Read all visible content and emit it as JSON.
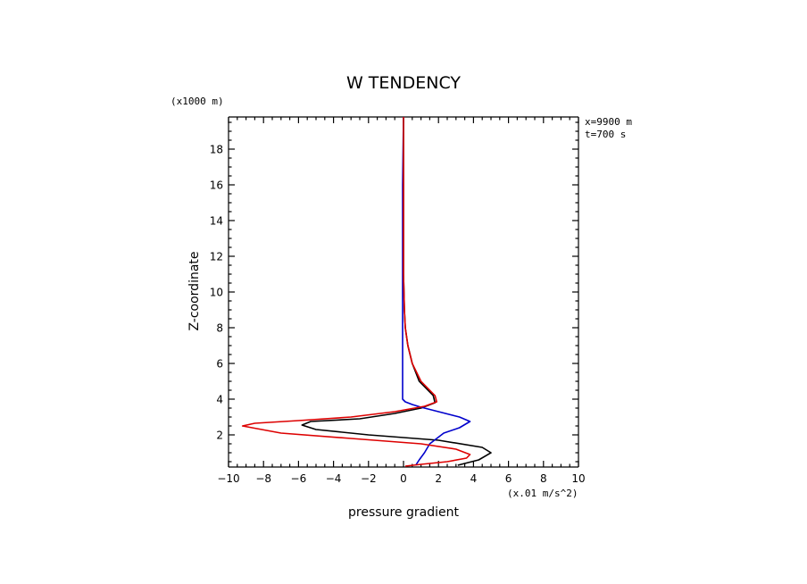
{
  "chart_data": {
    "type": "line",
    "title": "W TENDENCY",
    "xlabel": "pressure gradient",
    "ylabel": "Z-coordinate",
    "x_units": "(x.01 m/s^2)",
    "y_units": "(x1000 m)",
    "annotations": [
      "x=9900 m",
      "t=700 s"
    ],
    "xlim": [
      -10,
      10
    ],
    "ylim": [
      0.2,
      19.8
    ],
    "x_ticks": [
      -10,
      -8,
      -6,
      -4,
      -2,
      0,
      2,
      4,
      6,
      8,
      10
    ],
    "y_ticks": [
      2,
      4,
      6,
      8,
      10,
      12,
      14,
      16,
      18
    ],
    "grid": false,
    "series": [
      {
        "color": "#000000",
        "points": [
          [
            3.1,
            0.3
          ],
          [
            4.3,
            0.6
          ],
          [
            5.0,
            1.0
          ],
          [
            4.5,
            1.3
          ],
          [
            2.0,
            1.7
          ],
          [
            -2.0,
            2.0
          ],
          [
            -5.0,
            2.3
          ],
          [
            -5.8,
            2.55
          ],
          [
            -5.3,
            2.75
          ],
          [
            -2.5,
            2.9
          ],
          [
            -0.5,
            3.2
          ],
          [
            1.0,
            3.5
          ],
          [
            1.8,
            3.8
          ],
          [
            1.7,
            4.2
          ],
          [
            0.9,
            5.0
          ],
          [
            0.5,
            6.0
          ],
          [
            0.25,
            7.0
          ],
          [
            0.1,
            8.0
          ],
          [
            0.05,
            9.0
          ],
          [
            0.0,
            11.0
          ],
          [
            0.0,
            13.0
          ],
          [
            0.0,
            16.0
          ],
          [
            0.0,
            19.8
          ]
        ]
      },
      {
        "color": "#0000cc",
        "points": [
          [
            0.7,
            0.3
          ],
          [
            0.9,
            0.6
          ],
          [
            1.2,
            1.0
          ],
          [
            1.5,
            1.5
          ],
          [
            2.3,
            2.1
          ],
          [
            3.2,
            2.4
          ],
          [
            3.8,
            2.75
          ],
          [
            3.2,
            3.0
          ],
          [
            2.0,
            3.3
          ],
          [
            1.0,
            3.55
          ],
          [
            0.5,
            3.7
          ],
          [
            0.1,
            3.85
          ],
          [
            -0.05,
            4.0
          ],
          [
            -0.05,
            5.0
          ],
          [
            -0.05,
            7.0
          ],
          [
            -0.05,
            10.0
          ],
          [
            -0.05,
            13.0
          ],
          [
            -0.05,
            16.0
          ],
          [
            0.0,
            19.8
          ]
        ]
      },
      {
        "color": "#dd0000",
        "points": [
          [
            0.1,
            0.25
          ],
          [
            1.0,
            0.35
          ],
          [
            2.5,
            0.5
          ],
          [
            3.6,
            0.7
          ],
          [
            3.8,
            0.9
          ],
          [
            3.0,
            1.2
          ],
          [
            1.0,
            1.5
          ],
          [
            -3.0,
            1.8
          ],
          [
            -7.0,
            2.1
          ],
          [
            -9.2,
            2.5
          ],
          [
            -8.5,
            2.65
          ],
          [
            -6.0,
            2.8
          ],
          [
            -3.0,
            3.0
          ],
          [
            -0.5,
            3.3
          ],
          [
            1.2,
            3.6
          ],
          [
            1.9,
            3.85
          ],
          [
            1.8,
            4.2
          ],
          [
            1.0,
            5.0
          ],
          [
            0.5,
            6.0
          ],
          [
            0.25,
            7.0
          ],
          [
            0.1,
            8.0
          ],
          [
            0.05,
            9.0
          ],
          [
            0.0,
            11.0
          ],
          [
            0.0,
            13.0
          ],
          [
            0.0,
            16.0
          ],
          [
            0.0,
            19.8
          ]
        ]
      }
    ]
  }
}
